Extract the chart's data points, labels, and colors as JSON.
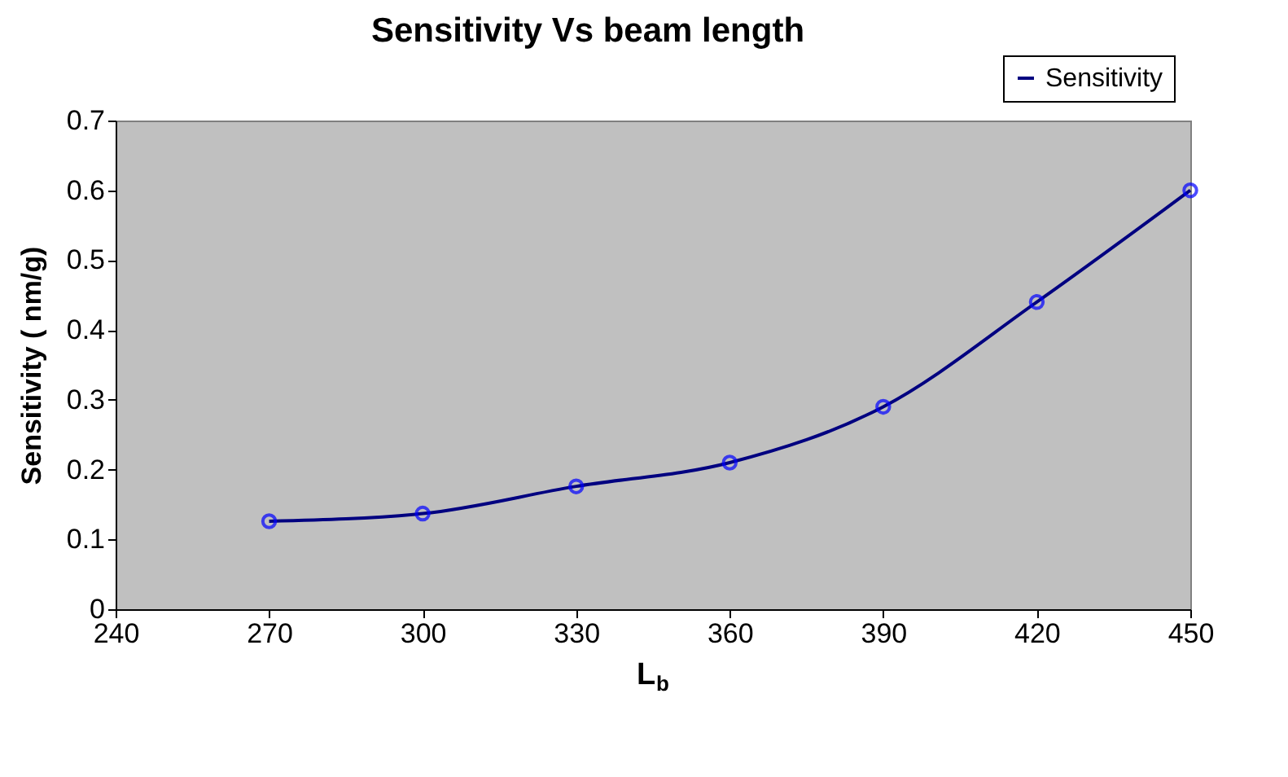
{
  "chart_data": {
    "type": "line",
    "title": "Sensitivity Vs beam length",
    "xlabel": "L$_{b}$",
    "ylabel": "Sensitivity ( nm/g)",
    "x": [
      270,
      300,
      330,
      360,
      390,
      420,
      450
    ],
    "series": [
      {
        "name": "Sensitivity",
        "color": "#000080",
        "colors": [
          "#0000ff",
          "#0000ff",
          "#0000ff",
          "#0000ff",
          "#0000ff",
          "#0000ff",
          "#0000ff"
        ],
        "values": [
          0.126,
          0.137,
          0.176,
          0.21,
          0.29,
          0.44,
          0.6
        ]
      }
    ],
    "xlim": [
      240,
      450
    ],
    "xticks": [
      240,
      270,
      300,
      330,
      360,
      390,
      420,
      450
    ],
    "ylim": [
      0,
      0.7
    ],
    "yticks": [
      0,
      0.1,
      0.2,
      0.3,
      0.4,
      0.5,
      0.6,
      0.7
    ],
    "grid": false,
    "legend": "top right",
    "marker": "circle",
    "line_style": "solid"
  }
}
